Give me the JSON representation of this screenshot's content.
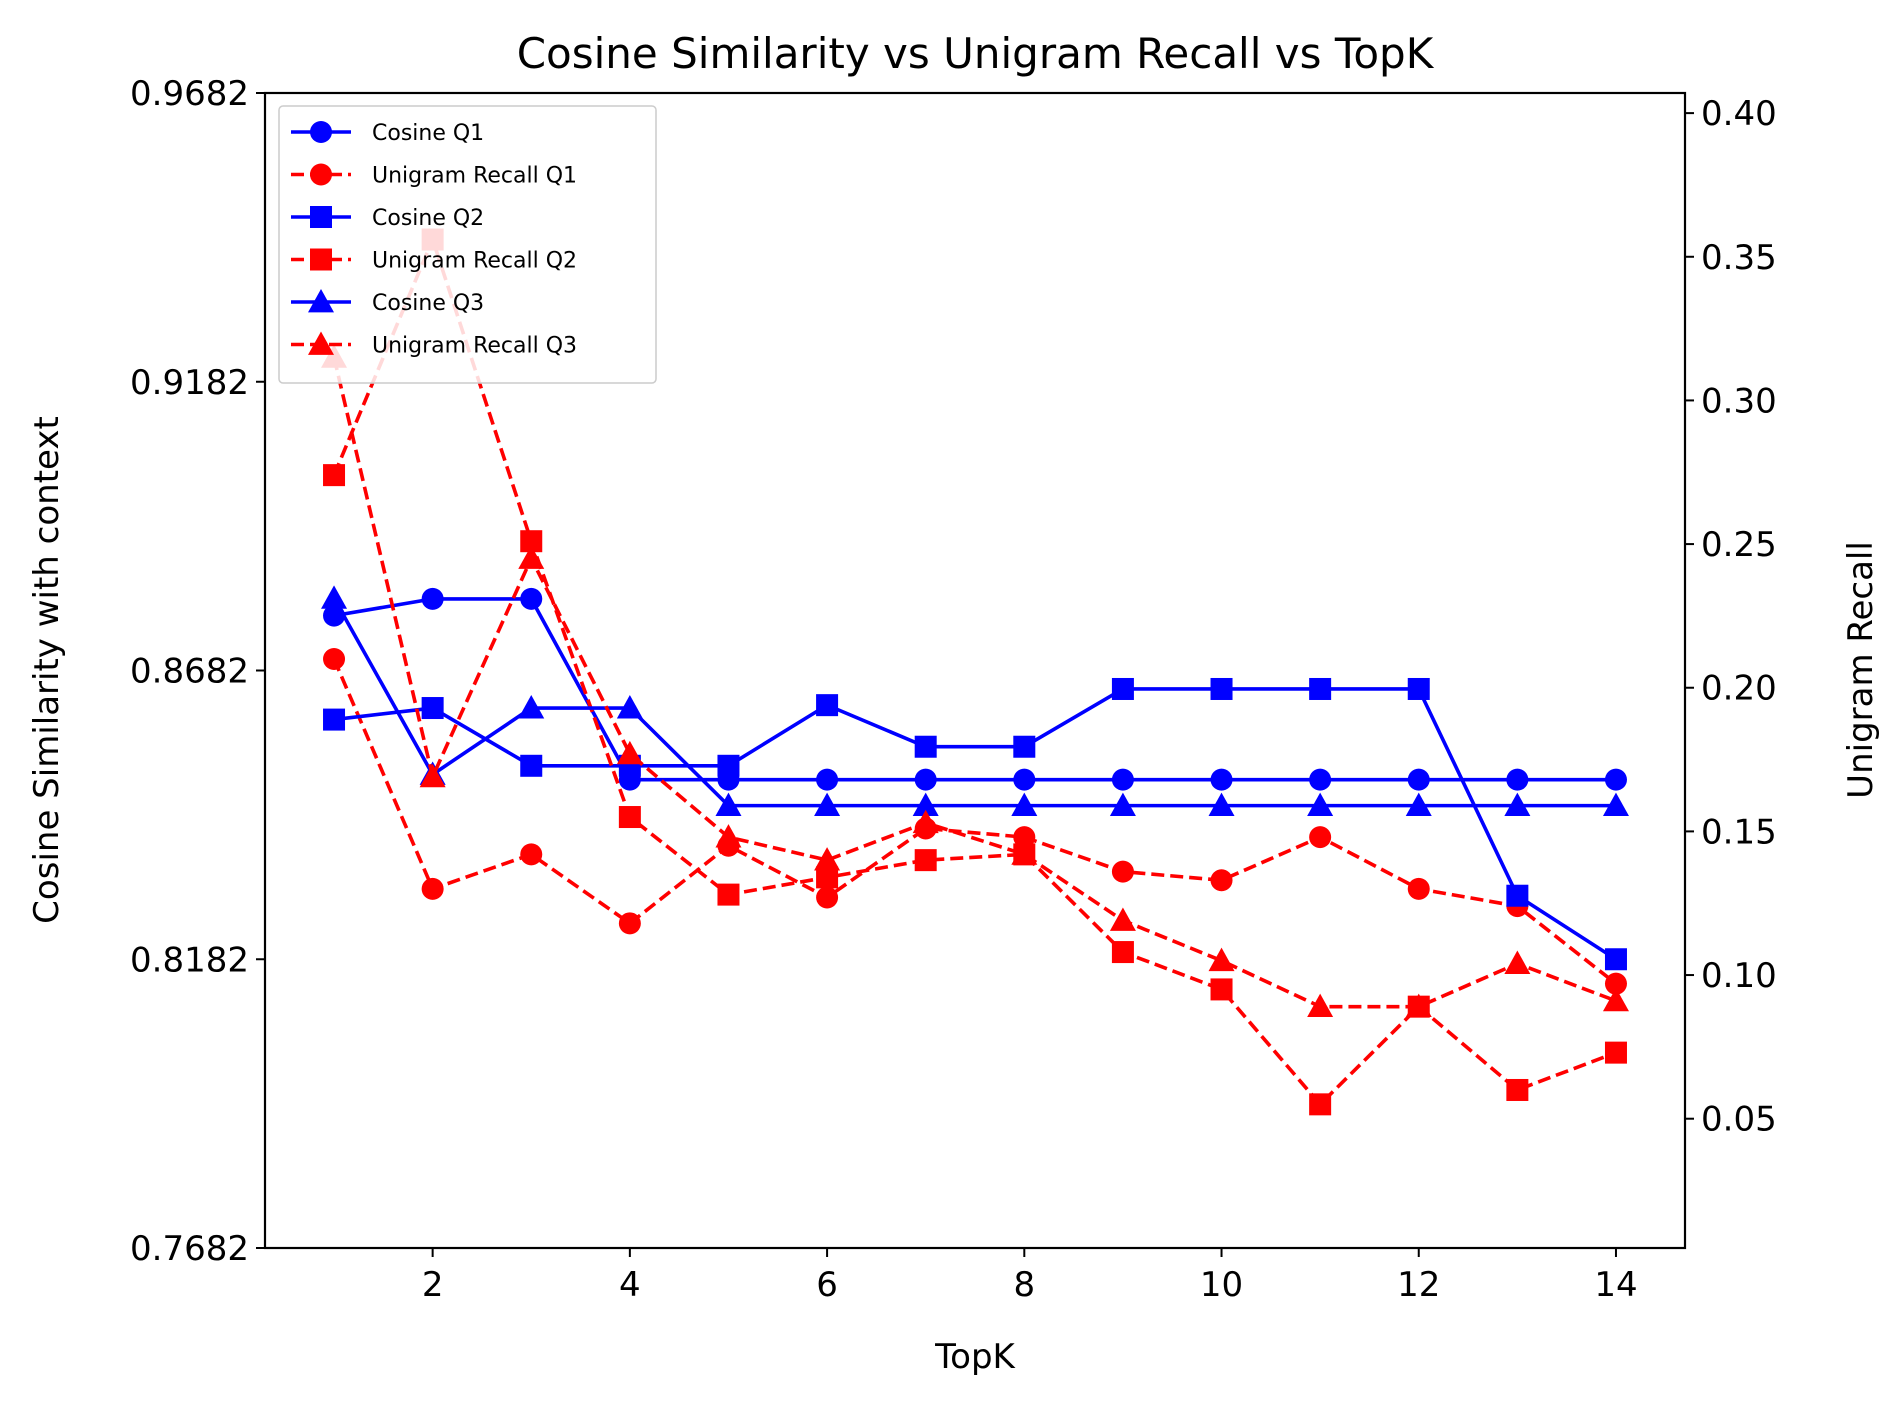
{
  "chart_data": {
    "type": "line",
    "title": "Cosine Similarity vs Unigram Recall vs TopK",
    "xlabel": "TopK",
    "ylabel_left": "Cosine Similarity with context",
    "ylabel_right": "Unigram Recall",
    "x": [
      1,
      2,
      3,
      4,
      5,
      6,
      7,
      8,
      9,
      10,
      11,
      12,
      13,
      14
    ],
    "xlim": [
      0.3,
      14.7
    ],
    "ylim_left": [
      0.7682,
      0.9682
    ],
    "ylim_right": [
      0.005,
      0.407
    ],
    "xticks": [
      "2",
      "4",
      "6",
      "8",
      "10",
      "12",
      "14"
    ],
    "yticks_left": [
      "0.7682",
      "0.8182",
      "0.8682",
      "0.9182",
      "0.9682"
    ],
    "yticks_right": [
      "0.05",
      "0.10",
      "0.15",
      "0.20",
      "0.25",
      "0.30",
      "0.35",
      "0.40"
    ],
    "grid": false,
    "legend_position": "top-left",
    "series": [
      {
        "name": "Cosine Q1",
        "axis": "left",
        "color": "#0000ff",
        "linestyle": "solid",
        "marker": "circle",
        "values": [
          0.8777,
          0.8806,
          0.8806,
          0.8493,
          0.8493,
          0.8493,
          0.8493,
          0.8493,
          0.8493,
          0.8493,
          0.8493,
          0.8493,
          0.8493,
          0.8493
        ]
      },
      {
        "name": "Unigram Recall Q1",
        "axis": "right",
        "color": "#ff0000",
        "linestyle": "dashed",
        "marker": "circle",
        "values": [
          0.21,
          0.13,
          0.142,
          0.118,
          0.145,
          0.127,
          0.151,
          0.148,
          0.136,
          0.133,
          0.148,
          0.13,
          0.124,
          0.097
        ]
      },
      {
        "name": "Cosine Q2",
        "axis": "left",
        "color": "#0000ff",
        "linestyle": "solid",
        "marker": "square",
        "values": [
          0.8597,
          0.8617,
          0.8517,
          0.8517,
          0.8517,
          0.8622,
          0.855,
          0.855,
          0.865,
          0.865,
          0.865,
          0.865,
          0.8292,
          0.8182
        ]
      },
      {
        "name": "Unigram Recall Q2",
        "axis": "right",
        "color": "#ff0000",
        "linestyle": "dashed",
        "marker": "square",
        "values": [
          0.274,
          0.356,
          0.251,
          0.155,
          0.128,
          0.134,
          0.14,
          0.142,
          0.108,
          0.095,
          0.055,
          0.089,
          0.06,
          0.073
        ]
      },
      {
        "name": "Cosine Q3",
        "axis": "left",
        "color": "#0000ff",
        "linestyle": "solid",
        "marker": "triangle",
        "values": [
          0.8807,
          0.8502,
          0.8617,
          0.8617,
          0.8448,
          0.8448,
          0.8448,
          0.8448,
          0.8448,
          0.8448,
          0.8448,
          0.8448,
          0.8448,
          0.8448
        ]
      },
      {
        "name": "Unigram Recall Q3",
        "axis": "right",
        "color": "#ff0000",
        "linestyle": "dashed",
        "marker": "triangle",
        "values": [
          0.315,
          0.169,
          0.245,
          0.177,
          0.148,
          0.14,
          0.153,
          0.142,
          0.119,
          0.105,
          0.089,
          0.089,
          0.104,
          0.091
        ]
      }
    ]
  }
}
